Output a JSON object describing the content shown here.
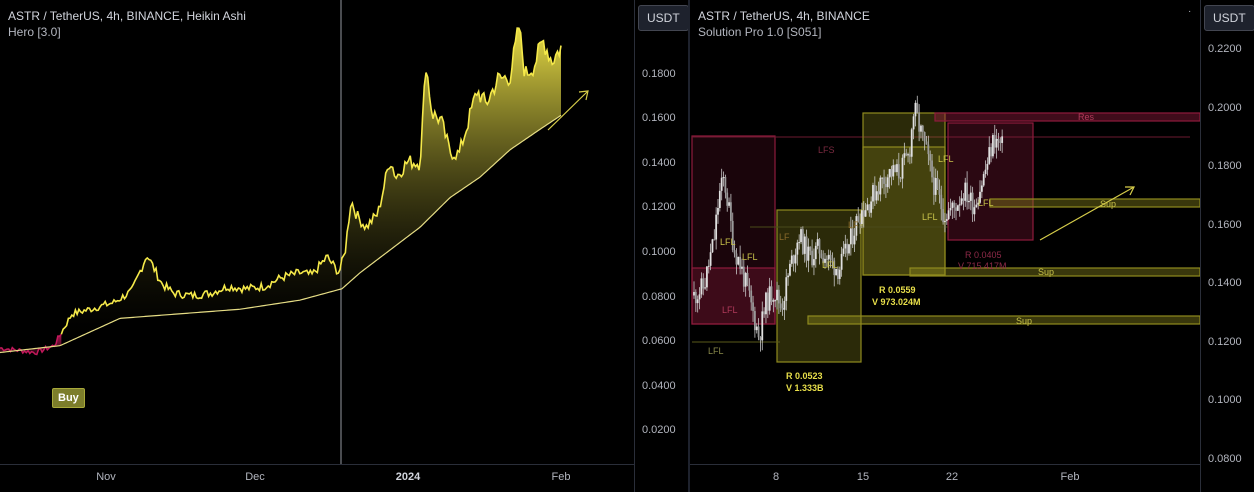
{
  "left_chart": {
    "title": "ASTR / TetherUS, 4h, BINANCE, Heikin Ashi",
    "indicator": "Hero [3.0]",
    "currency": "USDT",
    "buy_label": "Buy",
    "y_ticks": [
      "0.1800",
      "0.1600",
      "0.1400",
      "0.1200",
      "0.1000",
      "0.0800",
      "0.0600",
      "0.0400",
      "0.0200"
    ],
    "x_ticks": [
      {
        "label": "Nov",
        "bold": false
      },
      {
        "label": "Dec",
        "bold": false
      },
      {
        "label": "2024",
        "bold": true
      },
      {
        "label": "Feb",
        "bold": false
      }
    ]
  },
  "right_chart": {
    "title": "ASTR / TetherUS, 4h, BINANCE",
    "indicator": "Solution Pro 1.0 [S051]",
    "currency": "USDT",
    "menu_icon": "ellipsis-icon",
    "y_ticks": [
      "0.2200",
      "0.2000",
      "0.1800",
      "0.1600",
      "0.1400",
      "0.1200",
      "0.1000",
      "0.0800"
    ],
    "x_ticks": [
      {
        "label": "8",
        "bold": false
      },
      {
        "label": "15",
        "bold": false
      },
      {
        "label": "22",
        "bold": false
      },
      {
        "label": "Feb",
        "bold": false
      }
    ],
    "labels": {
      "res": "Res",
      "sup1": "Sup",
      "sup2": "Sup",
      "sup3": "Sup",
      "lfs": "LFS",
      "lfl": "LFL",
      "lf": "LF",
      "box1_r": "R  0.0523",
      "box1_v": "V  1.333B",
      "box2_r": "R  0.0559",
      "box2_v": "V  973.024M",
      "box3_r": "R  0.0405",
      "box3_v": "V  715.417M"
    }
  },
  "colors": {
    "background": "#000000",
    "heikin_yellow": "#f5e94a",
    "trail_line": "#e6dd85",
    "bear_magenta": "#c2185b",
    "box_yellow": "#8f8a1e",
    "box_red": "#8e1b3c",
    "candle_white": "#c8c8c8",
    "arrow": "#d6cd4a"
  },
  "chart_data": [
    {
      "type": "line",
      "title": "ASTR / TetherUS, 4h, BINANCE, Heikin Ashi",
      "x_categories": [
        "Nov",
        "Dec",
        "2024",
        "Feb"
      ],
      "ylim": [
        0.0,
        0.195
      ],
      "series": [
        {
          "values": [
            [
              0.0,
              0.047
            ],
            [
              0.03,
              0.046
            ],
            [
              0.06,
              0.045
            ],
            [
              0.09,
              0.048
            ],
            [
              0.12,
              0.062
            ],
            [
              0.15,
              0.064
            ],
            [
              0.19,
              0.067
            ],
            [
              0.22,
              0.072
            ],
            [
              0.245,
              0.088
            ],
            [
              0.27,
              0.075
            ],
            [
              0.29,
              0.071
            ],
            [
              0.32,
              0.07
            ],
            [
              0.35,
              0.071
            ],
            [
              0.38,
              0.074
            ],
            [
              0.41,
              0.073
            ],
            [
              0.44,
              0.074
            ],
            [
              0.47,
              0.078
            ],
            [
              0.5,
              0.08
            ],
            [
              0.52,
              0.079
            ],
            [
              0.545,
              0.087
            ],
            [
              0.565,
              0.08
            ],
            [
              0.575,
              0.089
            ],
            [
              0.585,
              0.112
            ],
            [
              0.595,
              0.105
            ],
            [
              0.61,
              0.1
            ],
            [
              0.63,
              0.106
            ],
            [
              0.65,
              0.13
            ],
            [
              0.66,
              0.122
            ],
            [
              0.68,
              0.129
            ],
            [
              0.7,
              0.128
            ],
            [
              0.71,
              0.172
            ],
            [
              0.72,
              0.15
            ],
            [
              0.735,
              0.147
            ],
            [
              0.75,
              0.133
            ],
            [
              0.765,
              0.132
            ],
            [
              0.78,
              0.146
            ],
            [
              0.795,
              0.16
            ],
            [
              0.81,
              0.154
            ],
            [
              0.83,
              0.165
            ],
            [
              0.85,
              0.166
            ],
            [
              0.865,
              0.188
            ],
            [
              0.875,
              0.167
            ],
            [
              0.89,
              0.171
            ],
            [
              0.905,
              0.182
            ],
            [
              0.92,
              0.173
            ],
            [
              0.935,
              0.179
            ]
          ]
        },
        {
          "values": [
            [
              0.0,
              0.045
            ],
            [
              0.1,
              0.048
            ],
            [
              0.2,
              0.06
            ],
            [
              0.3,
              0.062
            ],
            [
              0.4,
              0.064
            ],
            [
              0.5,
              0.068
            ],
            [
              0.57,
              0.073
            ],
            [
              0.6,
              0.08
            ],
            [
              0.7,
              0.1
            ],
            [
              0.75,
              0.113
            ],
            [
              0.8,
              0.122
            ],
            [
              0.85,
              0.134
            ],
            [
              0.9,
              0.143
            ],
            [
              0.94,
              0.15
            ]
          ]
        }
      ],
      "annotations": [
        "Buy"
      ]
    },
    {
      "type": "scatter",
      "title": "ASTR / TetherUS, 4h, BINANCE",
      "x_categories": [
        "8",
        "15",
        "22",
        "Feb"
      ],
      "ylim": [
        0.078,
        0.2225
      ],
      "series": [
        {
          "values": [
            [
              0.0,
              0.134
            ],
            [
              0.02,
              0.137
            ],
            [
              0.04,
              0.153
            ],
            [
              0.05,
              0.168
            ],
            [
              0.06,
              0.174
            ],
            [
              0.07,
              0.163
            ],
            [
              0.08,
              0.15
            ],
            [
              0.09,
              0.146
            ],
            [
              0.1,
              0.14
            ],
            [
              0.115,
              0.13
            ],
            [
              0.13,
              0.12
            ],
            [
              0.145,
              0.132
            ],
            [
              0.16,
              0.136
            ],
            [
              0.175,
              0.13
            ],
            [
              0.19,
              0.142
            ],
            [
              0.21,
              0.155
            ],
            [
              0.23,
              0.147
            ],
            [
              0.25,
              0.15
            ],
            [
              0.27,
              0.146
            ],
            [
              0.29,
              0.143
            ],
            [
              0.31,
              0.151
            ],
            [
              0.33,
              0.162
            ],
            [
              0.35,
              0.166
            ],
            [
              0.37,
              0.172
            ],
            [
              0.39,
              0.176
            ],
            [
              0.41,
              0.176
            ],
            [
              0.43,
              0.182
            ],
            [
              0.44,
              0.198
            ],
            [
              0.46,
              0.186
            ],
            [
              0.48,
              0.172
            ],
            [
              0.5,
              0.162
            ],
            [
              0.52,
              0.164
            ],
            [
              0.54,
              0.17
            ],
            [
              0.56,
              0.165
            ],
            [
              0.58,
              0.175
            ],
            [
              0.6,
              0.188
            ],
            [
              0.62,
              0.184
            ]
          ]
        }
      ],
      "annotations": [
        "Res",
        "Sup",
        "Sup",
        "Sup",
        "LFS",
        "LFL",
        "LF",
        "R  0.0523",
        "V  1.333B",
        "R  0.0559",
        "V  973.024M",
        "R  0.0405",
        "V  715.417M"
      ]
    }
  ]
}
